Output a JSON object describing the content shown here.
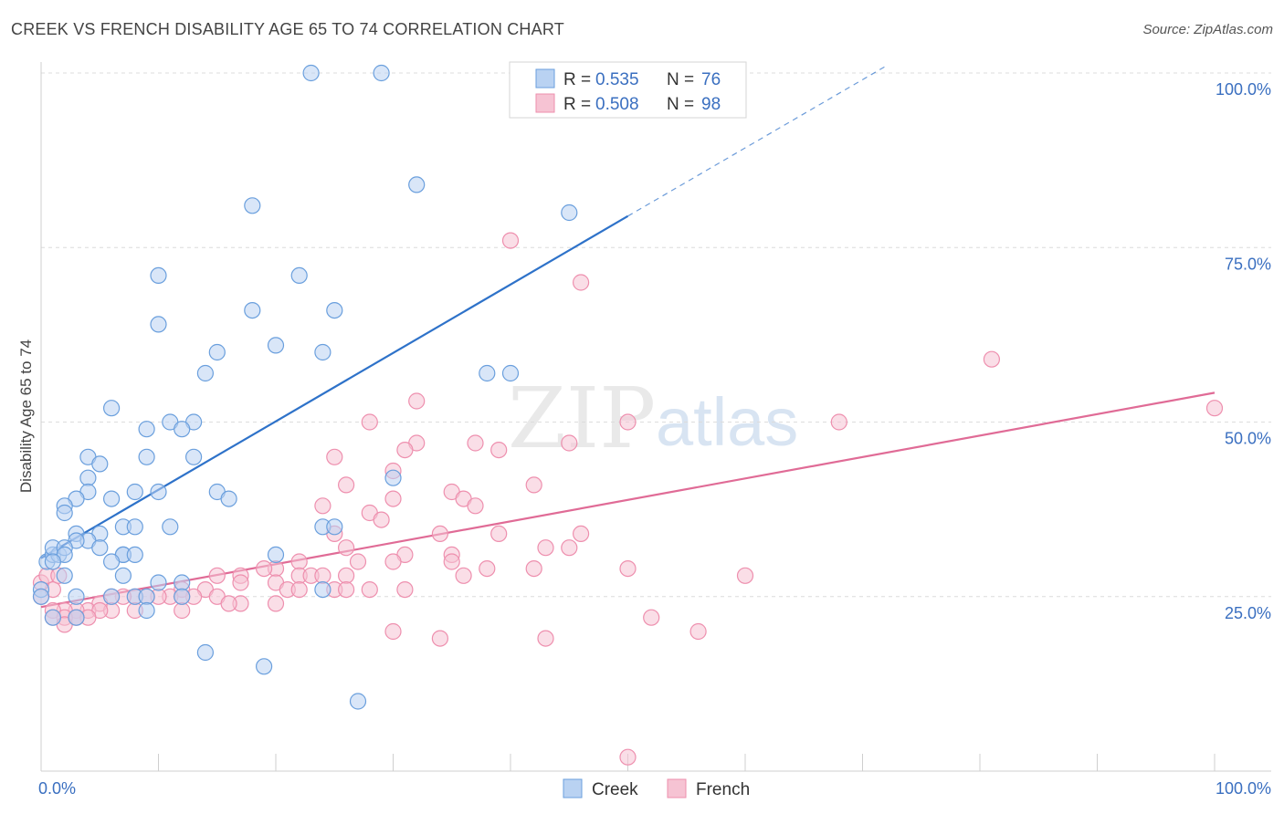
{
  "title": "CREEK VS FRENCH DISABILITY AGE 65 TO 74 CORRELATION CHART",
  "source": "Source: ZipAtlas.com",
  "watermark": {
    "part1": "ZIP",
    "part2": "atlas"
  },
  "colors": {
    "creek": "#6a9fdd",
    "creek_fill": "#b9d2f2",
    "creek_line": "#2e72c9",
    "french": "#ee8fae",
    "french_fill": "#f6c3d3",
    "french_line": "#e06b96",
    "tick": "#3a6fc0",
    "grid": "#dcdcdc"
  },
  "legend": {
    "creek": {
      "r_label": "R =",
      "r_value": "0.535",
      "n_label": "N =",
      "n_value": "76"
    },
    "french": {
      "r_label": "R =",
      "r_value": "0.508",
      "n_label": "N =",
      "n_value": "98"
    }
  },
  "bottom_legend": {
    "creek": "Creek",
    "french": "French"
  },
  "chart_data": {
    "type": "scatter",
    "title": "CREEK VS FRENCH DISABILITY AGE 65 TO 74 CORRELATION CHART",
    "xlabel": "",
    "ylabel": "Disability Age 65 to 74",
    "xlim": [
      0,
      100
    ],
    "ylim": [
      0,
      100
    ],
    "x_tick_labels": [
      "0.0%",
      "100.0%"
    ],
    "y_ticks": [
      25,
      50,
      75,
      100
    ],
    "y_tick_labels": [
      "25.0%",
      "50.0%",
      "75.0%",
      "100.0%"
    ],
    "grid": true,
    "legend_position": "top-center",
    "series": [
      {
        "name": "Creek",
        "r": 0.535,
        "n": 76,
        "trend": {
          "x0": 0,
          "y0": 30.5,
          "x1": 50,
          "y1": 79.5,
          "dashed_to_x": 72,
          "dashed_to_y": 101
        },
        "points": [
          [
            23,
            100
          ],
          [
            29,
            100
          ],
          [
            32,
            84
          ],
          [
            18,
            81
          ],
          [
            45,
            80
          ],
          [
            10,
            71
          ],
          [
            22,
            71
          ],
          [
            10,
            64
          ],
          [
            18,
            66
          ],
          [
            25,
            66
          ],
          [
            15,
            60
          ],
          [
            20,
            61
          ],
          [
            24,
            60
          ],
          [
            14,
            57
          ],
          [
            38,
            57
          ],
          [
            40,
            57
          ],
          [
            6,
            52
          ],
          [
            9,
            49
          ],
          [
            11,
            50
          ],
          [
            13,
            50
          ],
          [
            12,
            49
          ],
          [
            9,
            45
          ],
          [
            13,
            45
          ],
          [
            4,
            45
          ],
          [
            5,
            44
          ],
          [
            4,
            42
          ],
          [
            4,
            40
          ],
          [
            3,
            39
          ],
          [
            6,
            39
          ],
          [
            8,
            40
          ],
          [
            10,
            40
          ],
          [
            15,
            40
          ],
          [
            16,
            39
          ],
          [
            2,
            38
          ],
          [
            2,
            37
          ],
          [
            3,
            34
          ],
          [
            7,
            35
          ],
          [
            8,
            35
          ],
          [
            11,
            35
          ],
          [
            5,
            34
          ],
          [
            4,
            33
          ],
          [
            3,
            33
          ],
          [
            0.5,
            30
          ],
          [
            1,
            31
          ],
          [
            1.5,
            31
          ],
          [
            1,
            32
          ],
          [
            2,
            32
          ],
          [
            5,
            32
          ],
          [
            2,
            31
          ],
          [
            7,
            31
          ],
          [
            7,
            31
          ],
          [
            8,
            31
          ],
          [
            6,
            30
          ],
          [
            1,
            30
          ],
          [
            2,
            28
          ],
          [
            7,
            28
          ],
          [
            3,
            25
          ],
          [
            6,
            25
          ],
          [
            8,
            25
          ],
          [
            9,
            25
          ],
          [
            10,
            27
          ],
          [
            12,
            27
          ],
          [
            24,
            35
          ],
          [
            25,
            35
          ],
          [
            20,
            31
          ],
          [
            24,
            26
          ],
          [
            30,
            42
          ],
          [
            0,
            26
          ],
          [
            0,
            25
          ],
          [
            1,
            22
          ],
          [
            9,
            23
          ],
          [
            3,
            22
          ],
          [
            14,
            17
          ],
          [
            19,
            15
          ],
          [
            27,
            10
          ],
          [
            12,
            25
          ]
        ]
      },
      {
        "name": "French",
        "r": 0.508,
        "n": 98,
        "trend": {
          "x0": 0,
          "y0": 23.5,
          "x1": 100,
          "y1": 54.2
        },
        "points": [
          [
            40,
            76
          ],
          [
            46,
            70
          ],
          [
            81,
            59
          ],
          [
            100,
            52
          ],
          [
            32,
            53
          ],
          [
            28,
            50
          ],
          [
            50,
            50
          ],
          [
            68,
            50
          ],
          [
            32,
            47
          ],
          [
            37,
            47
          ],
          [
            45,
            47
          ],
          [
            31,
            46
          ],
          [
            39,
            46
          ],
          [
            25,
            45
          ],
          [
            26,
            41
          ],
          [
            30,
            43
          ],
          [
            42,
            41
          ],
          [
            35,
            40
          ],
          [
            30,
            39
          ],
          [
            36,
            39
          ],
          [
            24,
            38
          ],
          [
            37,
            38
          ],
          [
            28,
            37
          ],
          [
            29,
            36
          ],
          [
            25,
            34
          ],
          [
            34,
            34
          ],
          [
            39,
            34
          ],
          [
            46,
            34
          ],
          [
            26,
            32
          ],
          [
            43,
            32
          ],
          [
            45,
            32
          ],
          [
            31,
            31
          ],
          [
            35,
            31
          ],
          [
            22,
            30
          ],
          [
            27,
            30
          ],
          [
            30,
            30
          ],
          [
            35,
            30
          ],
          [
            38,
            29
          ],
          [
            50,
            29
          ],
          [
            42,
            29
          ],
          [
            36,
            28
          ],
          [
            20,
            29
          ],
          [
            19,
            29
          ],
          [
            22,
            28
          ],
          [
            23,
            28
          ],
          [
            24,
            28
          ],
          [
            26,
            28
          ],
          [
            15,
            28
          ],
          [
            17,
            28
          ],
          [
            20,
            27
          ],
          [
            21,
            26
          ],
          [
            22,
            26
          ],
          [
            25,
            26
          ],
          [
            26,
            26
          ],
          [
            28,
            26
          ],
          [
            31,
            26
          ],
          [
            17,
            27
          ],
          [
            14,
            26
          ],
          [
            12,
            26
          ],
          [
            11,
            25
          ],
          [
            10,
            25
          ],
          [
            9,
            25
          ],
          [
            8,
            25
          ],
          [
            7,
            25
          ],
          [
            6,
            25
          ],
          [
            15,
            25
          ],
          [
            13,
            25
          ],
          [
            17,
            24
          ],
          [
            16,
            24
          ],
          [
            12,
            25
          ],
          [
            5,
            24
          ],
          [
            4,
            23
          ],
          [
            3,
            23
          ],
          [
            2,
            23
          ],
          [
            1,
            23
          ],
          [
            0,
            25
          ],
          [
            1,
            26
          ],
          [
            0,
            27
          ],
          [
            0.5,
            28
          ],
          [
            1.5,
            28
          ],
          [
            6,
            23
          ],
          [
            5,
            23
          ],
          [
            3,
            22
          ],
          [
            2,
            22
          ],
          [
            1,
            22
          ],
          [
            8,
            23
          ],
          [
            4,
            22
          ],
          [
            2,
            21
          ],
          [
            3,
            22
          ],
          [
            60,
            28
          ],
          [
            52,
            22
          ],
          [
            56,
            20
          ],
          [
            30,
            20
          ],
          [
            43,
            19
          ],
          [
            34,
            19
          ],
          [
            12,
            23
          ],
          [
            50,
            2
          ],
          [
            20,
            24
          ]
        ]
      }
    ]
  }
}
